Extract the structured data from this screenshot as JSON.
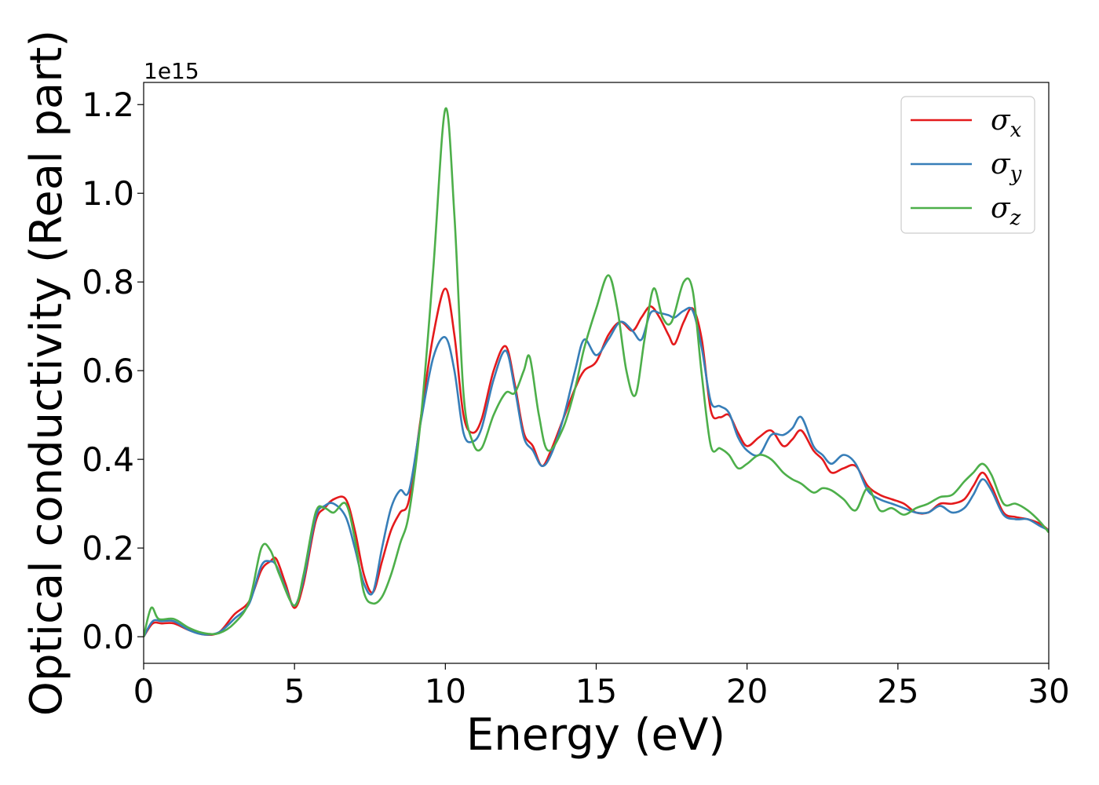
{
  "chart_data": {
    "type": "line",
    "xlabel": "Energy (eV)",
    "ylabel": "Optical conductivity (Real part)",
    "y_offset_label": "1e15",
    "xlim": [
      0,
      30
    ],
    "ylim": [
      -0.06,
      1.25
    ],
    "x_ticks": [
      0,
      5,
      10,
      15,
      20,
      25,
      30
    ],
    "y_ticks": [
      0.0,
      0.2,
      0.4,
      0.6,
      0.8,
      1.0,
      1.2
    ],
    "x_tick_labels": [
      "0",
      "5",
      "10",
      "15",
      "20",
      "25",
      "30"
    ],
    "y_tick_labels": [
      "0.0",
      "0.2",
      "0.4",
      "0.6",
      "0.8",
      "1.0",
      "1.2"
    ],
    "grid": false,
    "legend_position": "top-right",
    "series": [
      {
        "name": "σx",
        "symbol": "σ",
        "subscript": "x",
        "color": "#e41a1c",
        "points": [
          [
            0,
            0.0
          ],
          [
            0.3,
            0.03
          ],
          [
            0.6,
            0.03
          ],
          [
            1.0,
            0.03
          ],
          [
            1.5,
            0.015
          ],
          [
            2.0,
            0.005
          ],
          [
            2.5,
            0.01
          ],
          [
            3.0,
            0.05
          ],
          [
            3.5,
            0.08
          ],
          [
            3.9,
            0.15
          ],
          [
            4.2,
            0.17
          ],
          [
            4.4,
            0.175
          ],
          [
            4.7,
            0.12
          ],
          [
            5.0,
            0.065
          ],
          [
            5.3,
            0.12
          ],
          [
            5.7,
            0.26
          ],
          [
            6.0,
            0.29
          ],
          [
            6.3,
            0.31
          ],
          [
            6.7,
            0.31
          ],
          [
            7.0,
            0.24
          ],
          [
            7.3,
            0.14
          ],
          [
            7.6,
            0.1
          ],
          [
            7.9,
            0.17
          ],
          [
            8.2,
            0.24
          ],
          [
            8.5,
            0.28
          ],
          [
            8.8,
            0.31
          ],
          [
            9.2,
            0.5
          ],
          [
            9.6,
            0.68
          ],
          [
            10.0,
            0.785
          ],
          [
            10.3,
            0.68
          ],
          [
            10.6,
            0.5
          ],
          [
            10.9,
            0.46
          ],
          [
            11.2,
            0.49
          ],
          [
            11.6,
            0.6
          ],
          [
            12.0,
            0.655
          ],
          [
            12.3,
            0.57
          ],
          [
            12.6,
            0.46
          ],
          [
            12.9,
            0.43
          ],
          [
            13.2,
            0.385
          ],
          [
            13.5,
            0.42
          ],
          [
            13.9,
            0.49
          ],
          [
            14.3,
            0.56
          ],
          [
            14.6,
            0.6
          ],
          [
            15.0,
            0.62
          ],
          [
            15.4,
            0.68
          ],
          [
            15.8,
            0.71
          ],
          [
            16.2,
            0.69
          ],
          [
            16.5,
            0.72
          ],
          [
            16.8,
            0.745
          ],
          [
            17.1,
            0.72
          ],
          [
            17.4,
            0.68
          ],
          [
            17.6,
            0.66
          ],
          [
            17.9,
            0.71
          ],
          [
            18.2,
            0.74
          ],
          [
            18.5,
            0.67
          ],
          [
            18.8,
            0.51
          ],
          [
            19.1,
            0.495
          ],
          [
            19.4,
            0.5
          ],
          [
            19.7,
            0.46
          ],
          [
            20.0,
            0.43
          ],
          [
            20.4,
            0.45
          ],
          [
            20.8,
            0.465
          ],
          [
            21.2,
            0.43
          ],
          [
            21.5,
            0.445
          ],
          [
            21.8,
            0.465
          ],
          [
            22.2,
            0.42
          ],
          [
            22.5,
            0.4
          ],
          [
            22.8,
            0.37
          ],
          [
            23.2,
            0.38
          ],
          [
            23.6,
            0.385
          ],
          [
            24.0,
            0.34
          ],
          [
            24.4,
            0.32
          ],
          [
            24.8,
            0.31
          ],
          [
            25.2,
            0.3
          ],
          [
            25.6,
            0.28
          ],
          [
            26.0,
            0.28
          ],
          [
            26.4,
            0.3
          ],
          [
            26.8,
            0.3
          ],
          [
            27.2,
            0.31
          ],
          [
            27.5,
            0.34
          ],
          [
            27.8,
            0.37
          ],
          [
            28.1,
            0.34
          ],
          [
            28.5,
            0.28
          ],
          [
            28.9,
            0.27
          ],
          [
            29.3,
            0.265
          ],
          [
            29.7,
            0.255
          ],
          [
            30.0,
            0.24
          ]
        ]
      },
      {
        "name": "σy",
        "symbol": "σ",
        "subscript": "y",
        "color": "#377eb8",
        "points": [
          [
            0,
            0.0
          ],
          [
            0.3,
            0.035
          ],
          [
            0.6,
            0.035
          ],
          [
            1.0,
            0.035
          ],
          [
            1.5,
            0.015
          ],
          [
            2.0,
            0.005
          ],
          [
            2.5,
            0.01
          ],
          [
            3.0,
            0.04
          ],
          [
            3.5,
            0.075
          ],
          [
            3.9,
            0.16
          ],
          [
            4.2,
            0.17
          ],
          [
            4.4,
            0.16
          ],
          [
            4.7,
            0.11
          ],
          [
            5.0,
            0.07
          ],
          [
            5.3,
            0.13
          ],
          [
            5.7,
            0.27
          ],
          [
            6.0,
            0.295
          ],
          [
            6.3,
            0.3
          ],
          [
            6.7,
            0.27
          ],
          [
            7.0,
            0.2
          ],
          [
            7.3,
            0.12
          ],
          [
            7.6,
            0.1
          ],
          [
            7.9,
            0.2
          ],
          [
            8.2,
            0.29
          ],
          [
            8.5,
            0.33
          ],
          [
            8.8,
            0.33
          ],
          [
            9.2,
            0.49
          ],
          [
            9.6,
            0.63
          ],
          [
            10.0,
            0.675
          ],
          [
            10.3,
            0.6
          ],
          [
            10.6,
            0.46
          ],
          [
            10.9,
            0.44
          ],
          [
            11.2,
            0.47
          ],
          [
            11.6,
            0.58
          ],
          [
            12.0,
            0.645
          ],
          [
            12.3,
            0.56
          ],
          [
            12.6,
            0.45
          ],
          [
            12.9,
            0.42
          ],
          [
            13.2,
            0.385
          ],
          [
            13.5,
            0.41
          ],
          [
            13.9,
            0.49
          ],
          [
            14.3,
            0.6
          ],
          [
            14.6,
            0.67
          ],
          [
            15.0,
            0.635
          ],
          [
            15.4,
            0.67
          ],
          [
            15.8,
            0.71
          ],
          [
            16.2,
            0.69
          ],
          [
            16.5,
            0.67
          ],
          [
            16.8,
            0.73
          ],
          [
            17.1,
            0.73
          ],
          [
            17.4,
            0.725
          ],
          [
            17.6,
            0.72
          ],
          [
            17.9,
            0.735
          ],
          [
            18.2,
            0.735
          ],
          [
            18.5,
            0.65
          ],
          [
            18.8,
            0.53
          ],
          [
            19.1,
            0.52
          ],
          [
            19.4,
            0.505
          ],
          [
            19.7,
            0.45
          ],
          [
            20.0,
            0.42
          ],
          [
            20.4,
            0.41
          ],
          [
            20.8,
            0.455
          ],
          [
            21.2,
            0.455
          ],
          [
            21.5,
            0.47
          ],
          [
            21.8,
            0.495
          ],
          [
            22.2,
            0.43
          ],
          [
            22.5,
            0.41
          ],
          [
            22.8,
            0.39
          ],
          [
            23.2,
            0.41
          ],
          [
            23.6,
            0.39
          ],
          [
            24.0,
            0.33
          ],
          [
            24.4,
            0.31
          ],
          [
            24.8,
            0.3
          ],
          [
            25.2,
            0.29
          ],
          [
            25.6,
            0.28
          ],
          [
            26.0,
            0.28
          ],
          [
            26.4,
            0.295
          ],
          [
            26.8,
            0.28
          ],
          [
            27.2,
            0.29
          ],
          [
            27.5,
            0.32
          ],
          [
            27.8,
            0.355
          ],
          [
            28.1,
            0.33
          ],
          [
            28.5,
            0.275
          ],
          [
            28.9,
            0.265
          ],
          [
            29.3,
            0.265
          ],
          [
            29.7,
            0.25
          ],
          [
            30.0,
            0.24
          ]
        ]
      },
      {
        "name": "σz",
        "symbol": "σ",
        "subscript": "z",
        "color": "#4daf4a",
        "points": [
          [
            0,
            0.0
          ],
          [
            0.25,
            0.065
          ],
          [
            0.5,
            0.04
          ],
          [
            1.0,
            0.04
          ],
          [
            1.5,
            0.02
          ],
          [
            2.0,
            0.008
          ],
          [
            2.5,
            0.008
          ],
          [
            3.0,
            0.03
          ],
          [
            3.5,
            0.08
          ],
          [
            3.9,
            0.2
          ],
          [
            4.2,
            0.195
          ],
          [
            4.5,
            0.14
          ],
          [
            5.0,
            0.07
          ],
          [
            5.3,
            0.14
          ],
          [
            5.7,
            0.28
          ],
          [
            6.0,
            0.29
          ],
          [
            6.3,
            0.28
          ],
          [
            6.7,
            0.3
          ],
          [
            7.0,
            0.22
          ],
          [
            7.3,
            0.1
          ],
          [
            7.6,
            0.075
          ],
          [
            7.9,
            0.09
          ],
          [
            8.2,
            0.14
          ],
          [
            8.5,
            0.21
          ],
          [
            8.8,
            0.28
          ],
          [
            9.2,
            0.5
          ],
          [
            9.6,
            0.83
          ],
          [
            10.0,
            1.19
          ],
          [
            10.3,
            0.95
          ],
          [
            10.6,
            0.55
          ],
          [
            10.9,
            0.44
          ],
          [
            11.2,
            0.425
          ],
          [
            11.6,
            0.5
          ],
          [
            12.0,
            0.55
          ],
          [
            12.3,
            0.55
          ],
          [
            12.6,
            0.6
          ],
          [
            12.8,
            0.63
          ],
          [
            13.1,
            0.5
          ],
          [
            13.4,
            0.42
          ],
          [
            13.9,
            0.47
          ],
          [
            14.3,
            0.56
          ],
          [
            14.6,
            0.65
          ],
          [
            15.0,
            0.74
          ],
          [
            15.4,
            0.815
          ],
          [
            15.7,
            0.74
          ],
          [
            16.0,
            0.6
          ],
          [
            16.3,
            0.545
          ],
          [
            16.6,
            0.67
          ],
          [
            16.9,
            0.785
          ],
          [
            17.2,
            0.72
          ],
          [
            17.5,
            0.71
          ],
          [
            17.9,
            0.8
          ],
          [
            18.2,
            0.78
          ],
          [
            18.5,
            0.59
          ],
          [
            18.8,
            0.43
          ],
          [
            19.1,
            0.425
          ],
          [
            19.4,
            0.41
          ],
          [
            19.7,
            0.38
          ],
          [
            20.0,
            0.39
          ],
          [
            20.4,
            0.41
          ],
          [
            20.8,
            0.4
          ],
          [
            21.2,
            0.37
          ],
          [
            21.5,
            0.355
          ],
          [
            21.8,
            0.345
          ],
          [
            22.2,
            0.325
          ],
          [
            22.5,
            0.335
          ],
          [
            22.8,
            0.33
          ],
          [
            23.2,
            0.31
          ],
          [
            23.6,
            0.285
          ],
          [
            24.0,
            0.335
          ],
          [
            24.4,
            0.285
          ],
          [
            24.8,
            0.29
          ],
          [
            25.2,
            0.275
          ],
          [
            25.6,
            0.29
          ],
          [
            26.0,
            0.3
          ],
          [
            26.4,
            0.315
          ],
          [
            26.8,
            0.32
          ],
          [
            27.2,
            0.35
          ],
          [
            27.5,
            0.37
          ],
          [
            27.8,
            0.39
          ],
          [
            28.1,
            0.365
          ],
          [
            28.5,
            0.3
          ],
          [
            28.9,
            0.3
          ],
          [
            29.3,
            0.285
          ],
          [
            29.7,
            0.26
          ],
          [
            30.0,
            0.235
          ]
        ]
      }
    ]
  }
}
